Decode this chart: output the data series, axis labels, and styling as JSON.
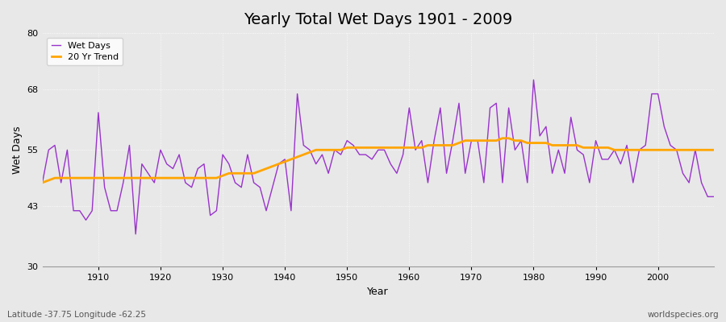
{
  "title": "Yearly Total Wet Days 1901 - 2009",
  "xlabel": "Year",
  "ylabel": "Wet Days",
  "xlim": [
    1901,
    2009
  ],
  "ylim": [
    30,
    80
  ],
  "yticks": [
    30,
    43,
    55,
    68,
    80
  ],
  "xticks": [
    1910,
    1920,
    1930,
    1940,
    1950,
    1960,
    1970,
    1980,
    1990,
    2000
  ],
  "fig_bg_color": "#e8e8e8",
  "plot_bg_color": "#e8e8e8",
  "wet_days_color": "#9933cc",
  "trend_color": "#ffa500",
  "wet_days_label": "Wet Days",
  "trend_label": "20 Yr Trend",
  "subtitle_left": "Latitude -37.75 Longitude -62.25",
  "subtitle_right": "worldspecies.org",
  "wet_days": {
    "1901": 48,
    "1902": 55,
    "1903": 56,
    "1904": 48,
    "1905": 55,
    "1906": 42,
    "1907": 42,
    "1908": 40,
    "1909": 42,
    "1910": 63,
    "1911": 47,
    "1912": 42,
    "1913": 42,
    "1914": 48,
    "1915": 56,
    "1916": 37,
    "1917": 52,
    "1918": 50,
    "1919": 48,
    "1920": 55,
    "1921": 52,
    "1922": 51,
    "1923": 54,
    "1924": 48,
    "1925": 47,
    "1926": 51,
    "1927": 52,
    "1928": 41,
    "1929": 42,
    "1930": 54,
    "1931": 52,
    "1932": 48,
    "1933": 47,
    "1934": 54,
    "1935": 48,
    "1936": 47,
    "1937": 42,
    "1938": 47,
    "1939": 52,
    "1940": 53,
    "1941": 42,
    "1942": 67,
    "1943": 56,
    "1944": 55,
    "1945": 52,
    "1946": 54,
    "1947": 50,
    "1948": 55,
    "1949": 54,
    "1950": 57,
    "1951": 56,
    "1952": 54,
    "1953": 54,
    "1954": 53,
    "1955": 55,
    "1956": 55,
    "1957": 52,
    "1958": 50,
    "1959": 54,
    "1960": 64,
    "1961": 55,
    "1962": 57,
    "1963": 48,
    "1964": 57,
    "1965": 64,
    "1966": 50,
    "1967": 57,
    "1968": 65,
    "1969": 50,
    "1970": 57,
    "1971": 57,
    "1972": 48,
    "1973": 64,
    "1974": 65,
    "1975": 48,
    "1976": 64,
    "1977": 55,
    "1978": 57,
    "1979": 48,
    "1980": 70,
    "1981": 58,
    "1982": 60,
    "1983": 50,
    "1984": 55,
    "1985": 50,
    "1986": 62,
    "1987": 55,
    "1988": 54,
    "1989": 48,
    "1990": 57,
    "1991": 53,
    "1992": 53,
    "1993": 55,
    "1994": 52,
    "1995": 56,
    "1996": 48,
    "1997": 55,
    "1998": 56,
    "1999": 67,
    "2000": 67,
    "2001": 60,
    "2002": 56,
    "2003": 55,
    "2004": 50,
    "2005": 48,
    "2006": 55,
    "2007": 48,
    "2008": 45,
    "2009": 45
  },
  "trend": {
    "1901": 48,
    "1902": 48.5,
    "1903": 49,
    "1904": 49,
    "1905": 49,
    "1906": 49,
    "1907": 49,
    "1908": 49,
    "1909": 49,
    "1910": 49,
    "1911": 49,
    "1912": 49,
    "1913": 49,
    "1914": 49,
    "1915": 49,
    "1916": 49,
    "1917": 49,
    "1918": 49,
    "1919": 49,
    "1920": 49,
    "1921": 49,
    "1922": 49,
    "1923": 49,
    "1924": 49,
    "1925": 49,
    "1926": 49,
    "1927": 49,
    "1928": 49,
    "1929": 49,
    "1930": 49.5,
    "1931": 50,
    "1932": 50,
    "1933": 50,
    "1934": 50,
    "1935": 50,
    "1936": 50.5,
    "1937": 51,
    "1938": 51.5,
    "1939": 52,
    "1940": 52.5,
    "1941": 53,
    "1942": 53.5,
    "1943": 54,
    "1944": 54.5,
    "1945": 55,
    "1946": 55,
    "1947": 55,
    "1948": 55,
    "1949": 55,
    "1950": 55.5,
    "1951": 55.5,
    "1952": 55.5,
    "1953": 55.5,
    "1954": 55.5,
    "1955": 55.5,
    "1956": 55.5,
    "1957": 55.5,
    "1958": 55.5,
    "1959": 55.5,
    "1960": 55.5,
    "1961": 55.5,
    "1962": 55.5,
    "1963": 56,
    "1964": 56,
    "1965": 56,
    "1966": 56,
    "1967": 56,
    "1968": 56.5,
    "1969": 57,
    "1970": 57,
    "1971": 57,
    "1972": 57,
    "1973": 57,
    "1974": 57,
    "1975": 57.5,
    "1976": 57.5,
    "1977": 57,
    "1978": 57,
    "1979": 56.5,
    "1980": 56.5,
    "1981": 56.5,
    "1982": 56.5,
    "1983": 56,
    "1984": 56,
    "1985": 56,
    "1986": 56,
    "1987": 56,
    "1988": 55.5,
    "1989": 55.5,
    "1990": 55.5,
    "1991": 55.5,
    "1992": 55.5,
    "1993": 55,
    "1994": 55,
    "1995": 55,
    "1996": 55,
    "1997": 55,
    "1998": 55,
    "1999": 55,
    "2000": 55,
    "2001": 55,
    "2002": 55,
    "2003": 55,
    "2004": 55,
    "2005": 55,
    "2006": 55,
    "2007": 55,
    "2008": 55,
    "2009": 55
  }
}
